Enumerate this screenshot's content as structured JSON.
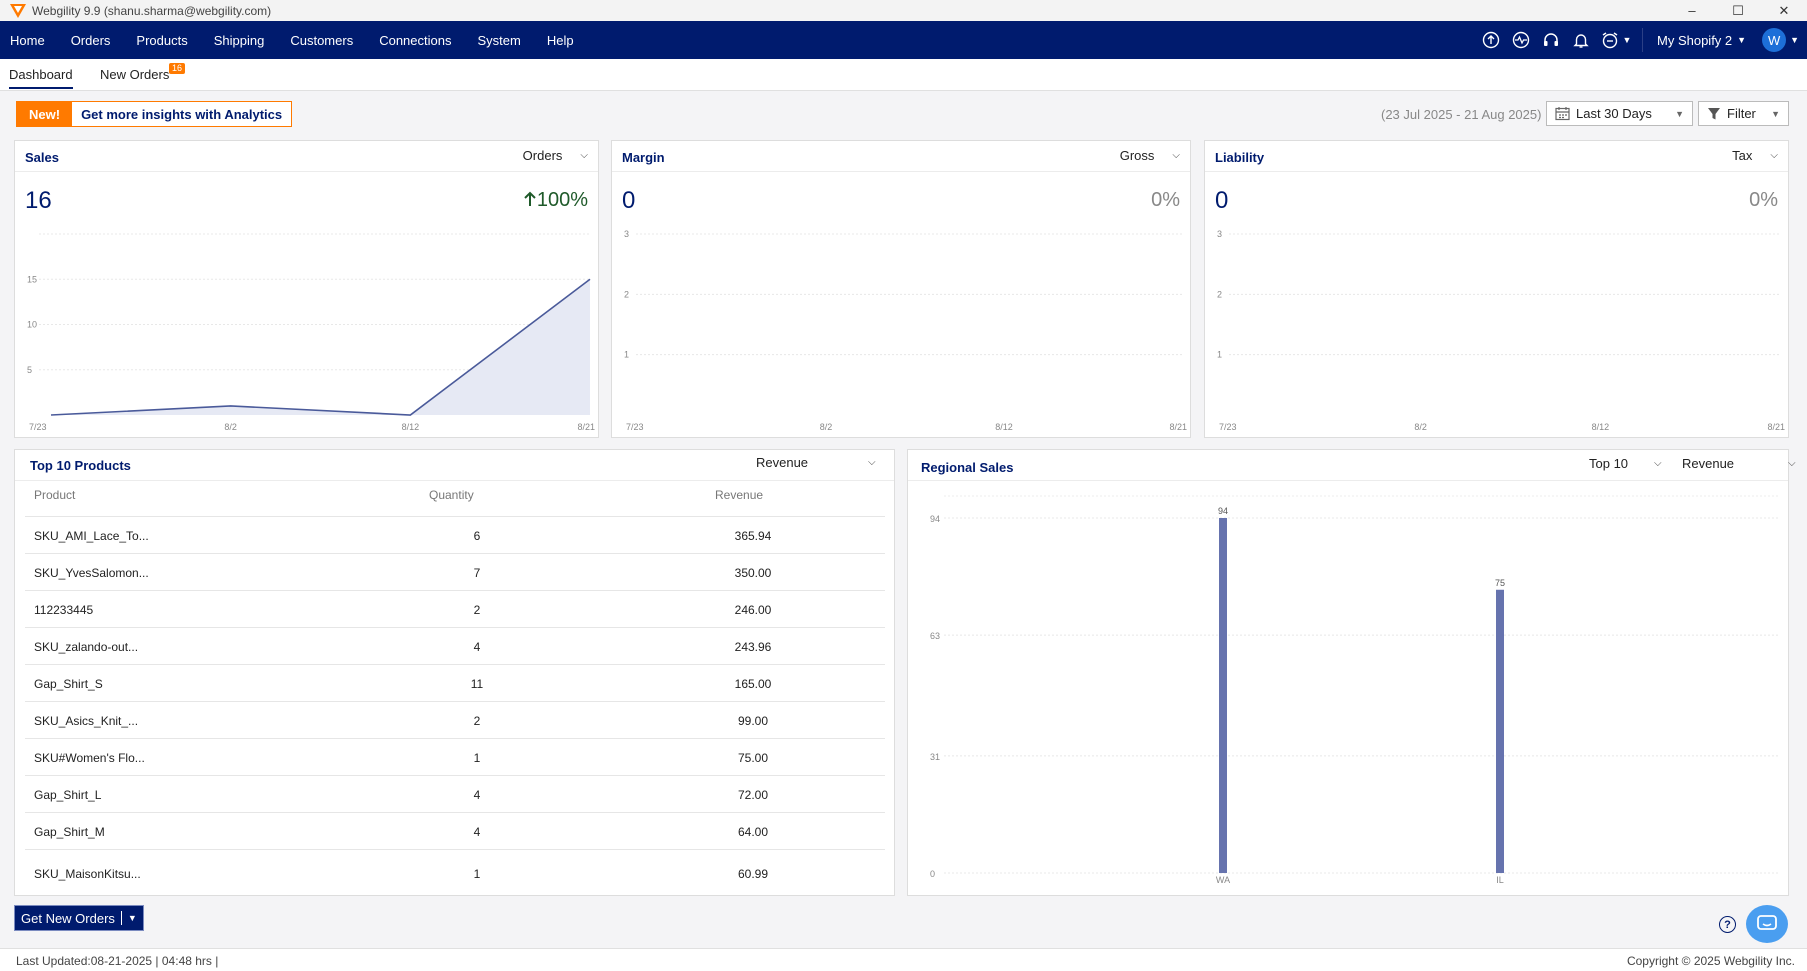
{
  "window": {
    "title": "Webgility 9.9 (shanu.sharma@webgility.com)",
    "controls": [
      "–",
      "☐",
      "✕"
    ]
  },
  "nav": {
    "items": [
      "Home",
      "Orders",
      "Products",
      "Shipping",
      "Customers",
      "Connections",
      "System",
      "Help"
    ],
    "store": "My Shopify 2",
    "avatar": "W"
  },
  "tabs": {
    "dashboard": "Dashboard",
    "new_orders": "New Orders",
    "new_orders_count": "16"
  },
  "promo": {
    "new": "New!",
    "text": "Get more insights with Analytics"
  },
  "filters": {
    "date_range": "(23 Jul 2025 - 21 Aug 2025)",
    "period": "Last 30 Days",
    "filter": "Filter"
  },
  "sales": {
    "title": "Sales",
    "dropdown": "Orders",
    "value": "16",
    "change": "100%",
    "chart_data": {
      "type": "area",
      "x": [
        "7/23",
        "8/2",
        "8/12",
        "8/21"
      ],
      "values": [
        0,
        1,
        0,
        15
      ],
      "yticks": [
        "5",
        "10",
        "15"
      ],
      "ylim": [
        0,
        20
      ],
      "color": "#4a5a9a"
    }
  },
  "margin": {
    "title": "Margin",
    "dropdown": "Gross",
    "value": "0",
    "change": "0%",
    "chart_data": {
      "type": "line",
      "x": [
        "7/23",
        "8/2",
        "8/12",
        "8/21"
      ],
      "yticks": [
        "1",
        "2",
        "3"
      ],
      "ylim": [
        0,
        3
      ]
    }
  },
  "liability": {
    "title": "Liability",
    "dropdown": "Tax",
    "value": "0",
    "change": "0%",
    "chart_data": {
      "type": "line",
      "x": [
        "7/23",
        "8/2",
        "8/12",
        "8/21"
      ],
      "yticks": [
        "1",
        "2",
        "3"
      ],
      "ylim": [
        0,
        3
      ]
    }
  },
  "top_products": {
    "title": "Top 10 Products",
    "dropdown": "Revenue",
    "columns": [
      "Product",
      "Quantity",
      "Revenue"
    ],
    "rows": [
      [
        "SKU_AMI_Lace_To...",
        "6",
        "365.94"
      ],
      [
        "SKU_YvesSalomon...",
        "7",
        "350.00"
      ],
      [
        "112233445",
        "2",
        "246.00"
      ],
      [
        "SKU_zalando-out...",
        "4",
        "243.96"
      ],
      [
        "Gap_Shirt_S",
        "11",
        "165.00"
      ],
      [
        "SKU_Asics_Knit_...",
        "2",
        "99.00"
      ],
      [
        "SKU#Women's Flo...",
        "1",
        "75.00"
      ],
      [
        "Gap_Shirt_L",
        "4",
        "72.00"
      ],
      [
        "Gap_Shirt_M",
        "4",
        "64.00"
      ],
      [
        "SKU_MaisonKitsu...",
        "1",
        "60.99"
      ]
    ]
  },
  "regional": {
    "title": "Regional Sales",
    "dropdown1": "Top 10",
    "dropdown2": "Revenue",
    "chart_data": {
      "type": "bar",
      "categories": [
        "WA",
        "IL"
      ],
      "values": [
        94,
        75
      ],
      "yticks": [
        "0",
        "31",
        "63",
        "94"
      ],
      "ylim": [
        0,
        94
      ],
      "color": "#6673ae"
    }
  },
  "actions": {
    "get_new_orders": "Get New Orders"
  },
  "footer": {
    "last_updated": "Last Updated:08-21-2025 | 04:48 hrs |",
    "copyright": "Copyright © 2025 Webgility Inc."
  }
}
